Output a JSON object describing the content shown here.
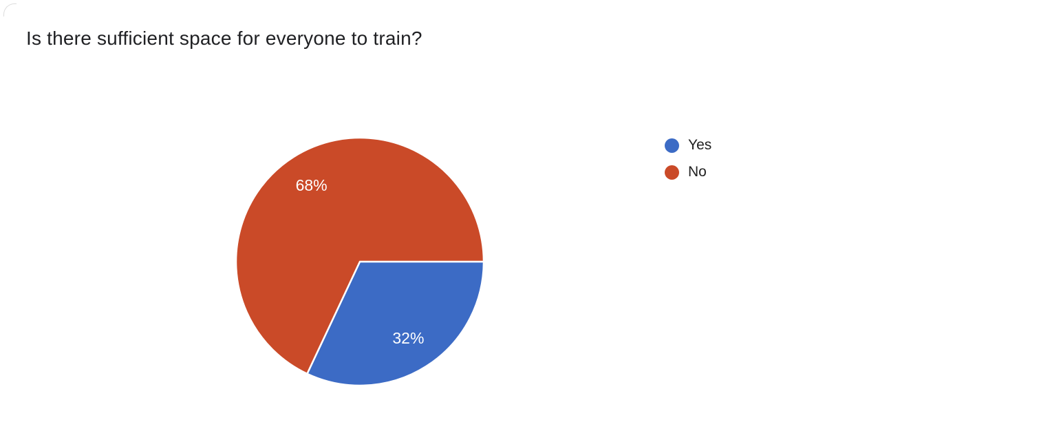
{
  "title": "Is there sufficient space for everyone to train?",
  "colors": {
    "background": "#ffffff",
    "title_text": "#202124",
    "legend_text": "#212121",
    "slice_label_text": "#ffffff",
    "yes_blue": "#3c6bc5",
    "no_red": "#ca4a28",
    "card_corner_border": "#dcdcdc"
  },
  "chart_data": {
    "type": "pie",
    "title": "Is there sufficient space for everyone to train?",
    "labels": [
      "Yes",
      "No"
    ],
    "values": [
      32,
      68
    ],
    "value_unit": "percent",
    "slice_labels": [
      "32%",
      "68%"
    ],
    "colors": [
      "#3c6bc5",
      "#ca4a28"
    ],
    "start_angle_deg": 90,
    "direction": "clockwise",
    "legend_position": "right",
    "slice_border_color": "#ffffff",
    "grid": false
  },
  "legend": {
    "items": [
      {
        "label": "Yes",
        "color": "#3c6bc5"
      },
      {
        "label": "No",
        "color": "#ca4a28"
      }
    ]
  }
}
